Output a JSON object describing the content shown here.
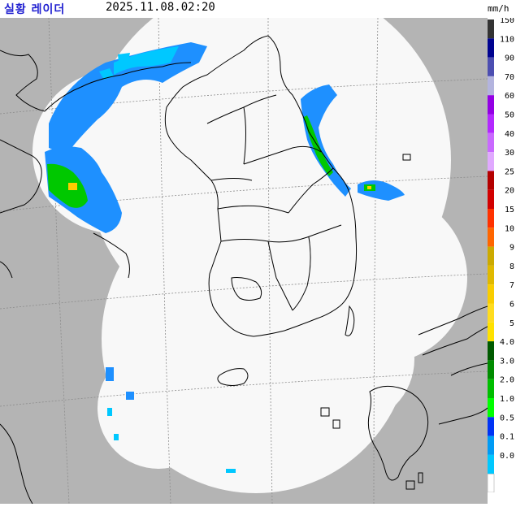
{
  "header": {
    "title": "실황 레이더",
    "timestamp": "2025.11.08.02:20",
    "unit": "mm/h"
  },
  "legend": {
    "items": [
      {
        "label": "150",
        "color": "#333333"
      },
      {
        "label": "110",
        "color": "#000390"
      },
      {
        "label": "90",
        "color": "#4c4eb1"
      },
      {
        "label": "70",
        "color": "#b3b4de"
      },
      {
        "label": "60",
        "color": "#9300e4"
      },
      {
        "label": "50",
        "color": "#b329ff"
      },
      {
        "label": "40",
        "color": "#c969ff"
      },
      {
        "label": "30",
        "color": "#e0a9ff"
      },
      {
        "label": "25",
        "color": "#b40000"
      },
      {
        "label": "20",
        "color": "#d20000"
      },
      {
        "label": "15",
        "color": "#ff3200"
      },
      {
        "label": "10",
        "color": "#ff6600"
      },
      {
        "label": "9",
        "color": "#ccaa00"
      },
      {
        "label": "8",
        "color": "#e0b900"
      },
      {
        "label": "7",
        "color": "#f9cd00"
      },
      {
        "label": "6",
        "color": "#ffdc1f"
      },
      {
        "label": "5",
        "color": "#ffe100"
      },
      {
        "label": "4.0",
        "color": "#005a00"
      },
      {
        "label": "3.0",
        "color": "#008c00"
      },
      {
        "label": "2.0",
        "color": "#00be00"
      },
      {
        "label": "1.0",
        "color": "#00ff00"
      },
      {
        "label": "0.5",
        "color": "#0033f5"
      },
      {
        "label": "0.1",
        "color": "#009bf5"
      },
      {
        "label": "0.0",
        "color": "#00c8ff"
      }
    ],
    "zero_color": "#ffffff"
  },
  "colors": {
    "outside_coverage": "#b4b4b4",
    "coverage": "#f8f8f8",
    "coastline": "#000000",
    "grid": "#8c8c8c",
    "light_rain": "#1e90ff",
    "very_light_rain": "#00c8ff",
    "moderate_rain": "#00c800",
    "heavy_rain": "#ffcc00"
  }
}
